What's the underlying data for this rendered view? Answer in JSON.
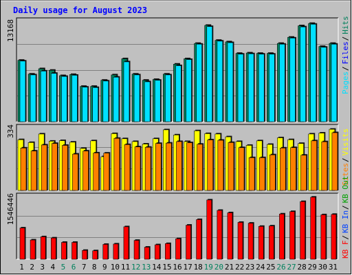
{
  "title": "Daily usage for August 2023",
  "colors": {
    "background": "#C0C0C0",
    "title": "#0000FF",
    "hits": "#00805C",
    "files": "#0000FF",
    "pages": "#00E0FF",
    "visits": "#FFFF00",
    "sites": "#FF8000",
    "kbytes": "#FF0000",
    "kbin": "#0040FF",
    "kbout": "#00A000",
    "weekend_day": "#00805C",
    "weekday": "#000000"
  },
  "chart_data": [
    {
      "type": "bar",
      "panel": "hits-files-pages",
      "ymax_label": "13168",
      "legend": [
        "Pages",
        "Files",
        "Hits"
      ],
      "ylim": [
        0,
        13168
      ],
      "categories": [
        "1",
        "2",
        "3",
        "4",
        "5",
        "6",
        "7",
        "8",
        "9",
        "10",
        "11",
        "12",
        "13",
        "14",
        "15",
        "16",
        "17",
        "18",
        "19",
        "20",
        "21",
        "22",
        "23",
        "24",
        "25",
        "26",
        "27",
        "28",
        "29",
        "30",
        "31"
      ],
      "series": [
        {
          "name": "Hits",
          "values": [
            8000,
            6200,
            6900,
            6700,
            6000,
            6150,
            4600,
            4600,
            5400,
            6100,
            8200,
            6200,
            5400,
            5500,
            6200,
            7500,
            8200,
            10200,
            12550,
            10600,
            10400,
            8900,
            8950,
            8900,
            8900,
            10200,
            11000,
            12500,
            12800,
            9800,
            10200
          ]
        },
        {
          "name": "Files",
          "values": [
            7900,
            6100,
            6600,
            6300,
            5900,
            6050,
            4500,
            4450,
            5300,
            5800,
            7800,
            6100,
            5200,
            5400,
            6100,
            7300,
            8100,
            10100,
            12400,
            10500,
            10300,
            8800,
            8850,
            8800,
            8800,
            10100,
            10900,
            12350,
            12700,
            9700,
            10100
          ]
        },
        {
          "name": "Pages",
          "values": [
            7900,
            6100,
            6600,
            6300,
            5900,
            6050,
            4500,
            4450,
            5300,
            5800,
            7800,
            6100,
            5200,
            5400,
            6100,
            7300,
            8100,
            10100,
            12400,
            10500,
            10300,
            8800,
            8850,
            8800,
            8800,
            10100,
            10900,
            12350,
            12700,
            9700,
            10100
          ]
        }
      ]
    },
    {
      "type": "bar",
      "panel": "visits-sites",
      "ymax_label": "334",
      "legend": [
        "Sites",
        "Visits"
      ],
      "ylim": [
        0,
        334
      ],
      "categories": [
        "1",
        "2",
        "3",
        "4",
        "5",
        "6",
        "7",
        "8",
        "9",
        "10",
        "11",
        "12",
        "13",
        "14",
        "15",
        "16",
        "17",
        "18",
        "19",
        "20",
        "21",
        "22",
        "23",
        "24",
        "25",
        "26",
        "27",
        "28",
        "29",
        "30",
        "31"
      ],
      "series": [
        {
          "name": "Visits",
          "values": [
            268,
            253,
            298,
            260,
            263,
            255,
            222,
            262,
            178,
            300,
            273,
            258,
            245,
            273,
            320,
            293,
            258,
            315,
            300,
            298,
            283,
            258,
            238,
            262,
            243,
            278,
            268,
            248,
            298,
            303,
            323
          ]
        },
        {
          "name": "Sites",
          "values": [
            224,
            208,
            240,
            248,
            238,
            192,
            208,
            198,
            197,
            275,
            242,
            230,
            228,
            248,
            250,
            258,
            252,
            244,
            267,
            265,
            253,
            226,
            173,
            173,
            188,
            224,
            226,
            186,
            262,
            257,
            305
          ]
        }
      ]
    },
    {
      "type": "bar",
      "panel": "kbytes-in-out",
      "ymax_label": "1546446",
      "legend": [
        "KB F",
        "KB In",
        "KB Out"
      ],
      "ylim": [
        0,
        1546446
      ],
      "categories": [
        "1",
        "2",
        "3",
        "4",
        "5",
        "6",
        "7",
        "8",
        "9",
        "10",
        "11",
        "12",
        "13",
        "14",
        "15",
        "16",
        "17",
        "18",
        "19",
        "20",
        "21",
        "22",
        "23",
        "24",
        "25",
        "26",
        "27",
        "28",
        "29",
        "30",
        "31"
      ],
      "series": [
        {
          "name": "KB F",
          "values": [
            780000,
            480000,
            560000,
            530000,
            420000,
            420000,
            220000,
            210000,
            370000,
            380000,
            810000,
            470000,
            300000,
            360000,
            390000,
            510000,
            850000,
            990000,
            1480000,
            1220000,
            1160000,
            920000,
            900000,
            820000,
            830000,
            1130000,
            1190000,
            1440000,
            1550000,
            1110000,
            1120000
          ]
        }
      ],
      "weekend_days": [
        5,
        6,
        12,
        13,
        19,
        20,
        26,
        27
      ]
    }
  ]
}
